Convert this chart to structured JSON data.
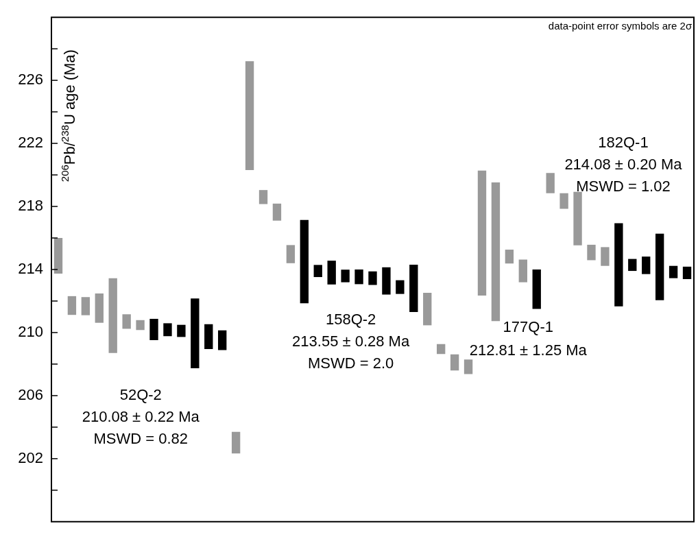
{
  "chart_data": {
    "type": "bar",
    "ylabel": "$^{206}$Pb/$^{238}$U age (Ma)",
    "categories": [
      null,
      null,
      null,
      null,
      null,
      null,
      null,
      null,
      null,
      null,
      null,
      null,
      null,
      null,
      null,
      null,
      null,
      null,
      null,
      null,
      null,
      null,
      null,
      null,
      null,
      null,
      null,
      null,
      null,
      null,
      null,
      null,
      null,
      null,
      null,
      null,
      null,
      null,
      null,
      null,
      null,
      null,
      null,
      null,
      null,
      null,
      null
    ],
    "base": [
      213.74,
      211.12,
      211.1,
      210.62,
      208.7,
      210.24,
      210.16,
      209.52,
      209.77,
      209.72,
      207.74,
      208.95,
      208.89,
      202.33,
      220.31,
      218.15,
      217.1,
      214.4,
      211.86,
      213.52,
      213.05,
      213.19,
      213.07,
      213.02,
      212.41,
      212.45,
      211.3,
      210.46,
      208.64,
      207.59,
      207.37,
      212.35,
      210.73,
      214.38,
      213.19,
      211.5,
      218.84,
      217.85,
      215.53,
      214.59,
      214.23,
      211.66,
      213.91,
      213.71,
      212.05,
      213.45,
      213.39
    ],
    "values": [
      2.26,
      1.19,
      1.15,
      1.86,
      4.74,
      0.92,
      0.63,
      1.35,
      0.82,
      0.77,
      4.42,
      1.58,
      1.25,
      1.37,
      6.9,
      0.89,
      1.08,
      1.15,
      5.28,
      0.77,
      1.51,
      0.8,
      0.93,
      0.86,
      1.73,
      0.87,
      3.0,
      2.06,
      0.63,
      1.03,
      0.92,
      7.93,
      8.8,
      0.88,
      1.44,
      2.5,
      1.28,
      0.99,
      3.4,
      0.98,
      1.19,
      5.28,
      0.76,
      1.11,
      4.22,
      0.78,
      0.79
    ],
    "colors": [
      "#999999",
      "#999999",
      "#999999",
      "#999999",
      "#999999",
      "#999999",
      "#999999",
      "#000000",
      "#000000",
      "#000000",
      "#000000",
      "#000000",
      "#000000",
      "#999999",
      "#999999",
      "#999999",
      "#999999",
      "#999999",
      "#000000",
      "#000000",
      "#000000",
      "#000000",
      "#000000",
      "#000000",
      "#000000",
      "#000000",
      "#000000",
      "#999999",
      "#999999",
      "#999999",
      "#999999",
      "#999999",
      "#999999",
      "#999999",
      "#999999",
      "#000000",
      "#999999",
      "#999999",
      "#999999",
      "#999999",
      "#999999",
      "#000000",
      "#000000",
      "#000000",
      "#000000",
      "#000000",
      "#000000"
    ],
    "ylim": [
      198,
      230
    ],
    "yticks": [
      {
        "value": 200,
        "label": null
      },
      202,
      {
        "value": 204,
        "label": null
      },
      206,
      {
        "value": 208,
        "label": null
      },
      210,
      {
        "value": 212,
        "label": null
      },
      214,
      {
        "value": 216,
        "label": null
      },
      218,
      {
        "value": 220,
        "label": null
      },
      222,
      {
        "value": 224,
        "label": null
      },
      226,
      {
        "value": 228,
        "label": null
      }
    ],
    "tick_labels": "y",
    "grid": false,
    "legend": false,
    "annotations": [
      "data-point error symbols are 2σ",
      "52Q-2\n210.08 ± 0.22 Ma\nMSWD = 0.82",
      "158Q-2\n213.55 ± 0.28 Ma\nMSWD = 2.0",
      "177Q-1\n212.81 ± 1.25 Ma",
      "182Q-1\n214.08 ± 0.20 Ma\nMSWD = 1.02"
    ]
  }
}
